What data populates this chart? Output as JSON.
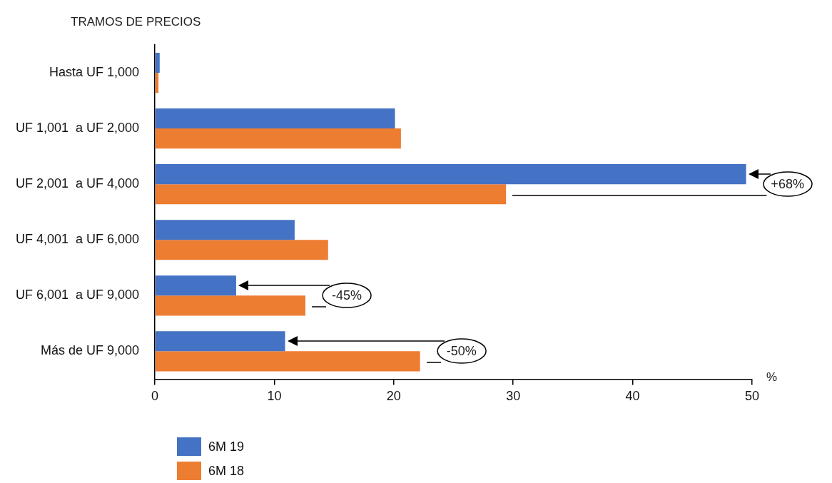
{
  "chart_data": {
    "type": "bar",
    "orientation": "horizontal",
    "title": "TRAMOS DE PRECIOS",
    "xlabel": "%",
    "categories": [
      "Hasta UF 1,000",
      "UF 1,001  a UF 2,000",
      "UF 2,001  a UF 4,000",
      "UF 4,001  a UF 6,000",
      "UF 6,001  a UF 9,000",
      "Más de UF 9,000"
    ],
    "series": [
      {
        "name": "6M 19",
        "color": "#4472c4",
        "values": [
          0.4,
          20.1,
          49.5,
          11.7,
          6.8,
          10.9
        ]
      },
      {
        "name": "6M 18",
        "color": "#ed7d31",
        "values": [
          0.3,
          20.6,
          29.4,
          14.5,
          12.6,
          22.2
        ]
      }
    ],
    "xlim": [
      0,
      50
    ],
    "xticks": [
      0,
      10,
      20,
      30,
      40,
      50
    ],
    "grid": false,
    "legend": "bottom left",
    "annotations": [
      "+68%",
      "-45%",
      "-50%"
    ]
  }
}
